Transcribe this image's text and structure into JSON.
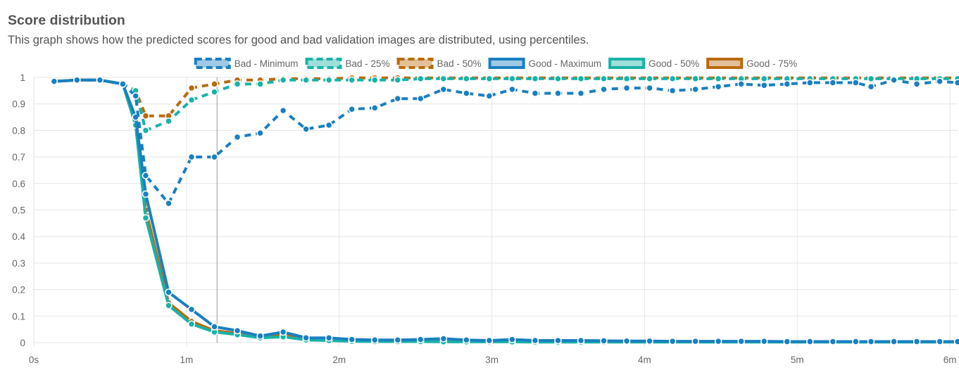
{
  "header": {
    "title": "Score distribution",
    "subtitle": "This graph shows how the predicted scores for good and bad validation images are distributed, using percentiles."
  },
  "chart_data": {
    "type": "line",
    "x_unit": "training time",
    "x_ticks": [
      {
        "value": 0,
        "label": "0s"
      },
      {
        "value": 1,
        "label": "1m"
      },
      {
        "value": 2,
        "label": "2m"
      },
      {
        "value": 3,
        "label": "3m"
      },
      {
        "value": 4,
        "label": "4m"
      },
      {
        "value": 5,
        "label": "5m"
      },
      {
        "value": 6,
        "label": "6m"
      }
    ],
    "y_ticks": [
      {
        "value": 0,
        "label": "0"
      },
      {
        "value": 0.1,
        "label": "0.1"
      },
      {
        "value": 0.2,
        "label": "0.2"
      },
      {
        "value": 0.3,
        "label": "0.3"
      },
      {
        "value": 0.4,
        "label": "0.4"
      },
      {
        "value": 0.5,
        "label": "0.5"
      },
      {
        "value": 0.6,
        "label": "0.6"
      },
      {
        "value": 0.7,
        "label": "0.7"
      },
      {
        "value": 0.8,
        "label": "0.8"
      },
      {
        "value": 0.9,
        "label": "0.9"
      },
      {
        "value": 1,
        "label": "1"
      }
    ],
    "xlim": [
      0,
      6.05
    ],
    "ylim": [
      0,
      1
    ],
    "grid": true,
    "legend_position": "top-center",
    "hover_marker_x": 1.2,
    "x": [
      0.133,
      0.283,
      0.433,
      0.583,
      0.667,
      0.733,
      0.883,
      1.033,
      1.183,
      1.333,
      1.483,
      1.633,
      1.783,
      1.933,
      2.083,
      2.233,
      2.383,
      2.533,
      2.683,
      2.833,
      2.983,
      3.133,
      3.283,
      3.433,
      3.583,
      3.733,
      3.883,
      4.033,
      4.183,
      4.333,
      4.483,
      4.633,
      4.783,
      4.933,
      5.083,
      5.233,
      5.383,
      5.483,
      5.633,
      5.783,
      5.933,
      6.05
    ],
    "series": [
      {
        "name": "Bad - Minimum",
        "color": "#1a7fc1",
        "style": "dashed",
        "values": [
          0.985,
          0.99,
          0.99,
          0.975,
          0.93,
          0.63,
          0.525,
          0.7,
          0.7,
          0.775,
          0.79,
          0.875,
          0.805,
          0.82,
          0.88,
          0.885,
          0.92,
          0.92,
          0.955,
          0.94,
          0.93,
          0.955,
          0.94,
          0.94,
          0.94,
          0.955,
          0.96,
          0.96,
          0.95,
          0.955,
          0.965,
          0.975,
          0.97,
          0.975,
          0.98,
          0.98,
          0.98,
          0.965,
          0.99,
          0.975,
          0.985,
          0.98
        ]
      },
      {
        "name": "Bad - 25%",
        "color": "#19b2a7",
        "style": "dashed",
        "values": [
          0.985,
          0.99,
          0.99,
          0.975,
          0.95,
          0.8,
          0.835,
          0.915,
          0.945,
          0.975,
          0.975,
          0.99,
          0.99,
          0.99,
          0.99,
          0.99,
          0.99,
          0.995,
          0.995,
          0.995,
          0.995,
          0.995,
          0.995,
          0.995,
          0.995,
          0.995,
          0.995,
          0.995,
          0.995,
          0.995,
          0.995,
          0.995,
          0.995,
          0.995,
          0.995,
          0.995,
          0.995,
          0.995,
          0.995,
          0.995,
          0.995,
          0.995
        ]
      },
      {
        "name": "Bad - 50%",
        "color": "#b96a0d",
        "style": "dashed",
        "values": [
          0.985,
          0.99,
          0.99,
          0.975,
          0.95,
          0.855,
          0.855,
          0.96,
          0.975,
          0.99,
          0.99,
          0.995,
          0.995,
          0.995,
          0.998,
          0.998,
          0.998,
          0.998,
          0.998,
          0.998,
          0.998,
          0.998,
          0.998,
          0.998,
          0.998,
          0.998,
          0.998,
          0.998,
          0.998,
          0.998,
          0.998,
          0.998,
          0.998,
          0.998,
          0.998,
          0.998,
          0.998,
          0.998,
          0.998,
          0.998,
          0.998,
          0.998
        ]
      },
      {
        "name": "Good - Maximum",
        "color": "#1a7fc1",
        "style": "solid",
        "values": [
          0.985,
          0.99,
          0.99,
          0.975,
          0.85,
          0.56,
          0.19,
          0.125,
          0.06,
          0.045,
          0.025,
          0.04,
          0.018,
          0.018,
          0.012,
          0.01,
          0.01,
          0.012,
          0.015,
          0.01,
          0.008,
          0.012,
          0.008,
          0.008,
          0.008,
          0.007,
          0.006,
          0.006,
          0.005,
          0.005,
          0.005,
          0.005,
          0.005,
          0.004,
          0.004,
          0.004,
          0.004,
          0.004,
          0.004,
          0.004,
          0.004,
          0.004
        ]
      },
      {
        "name": "Good - 50%",
        "color": "#19b2a7",
        "style": "solid",
        "values": [
          0.985,
          0.99,
          0.99,
          0.975,
          0.82,
          0.47,
          0.14,
          0.07,
          0.04,
          0.03,
          0.018,
          0.022,
          0.01,
          0.008,
          0.005,
          0.004,
          0.004,
          0.004,
          0.003,
          0.003,
          0.003,
          0.003,
          0.002,
          0.002,
          0.002,
          0.002,
          0.002,
          0.002,
          0.002,
          0.002,
          0.002,
          0.002,
          0.002,
          0.002,
          0.002,
          0.002,
          0.002,
          0.002,
          0.002,
          0.002,
          0.002,
          0.002
        ]
      },
      {
        "name": "Good - 75%",
        "color": "#b96a0d",
        "style": "solid",
        "values": [
          0.985,
          0.99,
          0.99,
          0.975,
          0.84,
          0.5,
          0.15,
          0.08,
          0.045,
          0.035,
          0.022,
          0.028,
          0.013,
          0.012,
          0.008,
          0.006,
          0.006,
          0.006,
          0.005,
          0.005,
          0.004,
          0.004,
          0.004,
          0.003,
          0.003,
          0.003,
          0.003,
          0.003,
          0.003,
          0.003,
          0.003,
          0.003,
          0.003,
          0.003,
          0.003,
          0.003,
          0.003,
          0.003,
          0.003,
          0.003,
          0.003,
          0.003
        ]
      }
    ]
  }
}
